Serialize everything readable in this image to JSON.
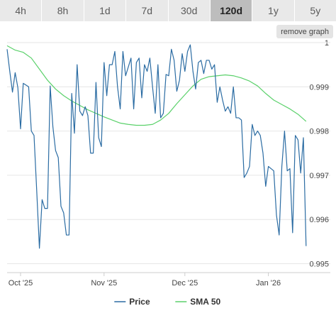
{
  "tabs": [
    {
      "label": "4h",
      "active": false
    },
    {
      "label": "8h",
      "active": false
    },
    {
      "label": "1d",
      "active": false
    },
    {
      "label": "7d",
      "active": false
    },
    {
      "label": "30d",
      "active": false
    },
    {
      "label": "120d",
      "active": true
    },
    {
      "label": "1y",
      "active": false
    },
    {
      "label": "5y",
      "active": false
    }
  ],
  "remove_graph_label": "remove graph",
  "colors": {
    "price": "#2b6ca3",
    "sma": "#5bd16b",
    "grid": "#e6e6e6",
    "active_tab": "#bdbdbd"
  },
  "chart_data": {
    "type": "line",
    "x_axis": {
      "type": "date",
      "range": [
        "2025-09-26",
        "2026-01-24"
      ],
      "ticks": [
        {
          "date": "2025-10-01",
          "label": "Oct '25"
        },
        {
          "date": "2025-11-01",
          "label": "Nov '25"
        },
        {
          "date": "2025-12-01",
          "label": "Dec '25"
        },
        {
          "date": "2026-01-01",
          "label": "Jan '26"
        }
      ]
    },
    "y_axis": {
      "range": [
        0.9948,
        1.0
      ],
      "ticks": [
        1,
        0.999,
        0.998,
        0.997,
        0.996,
        0.995
      ]
    },
    "grid": true,
    "legend_position": "bottom",
    "series": [
      {
        "name": "Price",
        "color": "#2b6ca3",
        "points": [
          [
            "2025-09-26",
            0.99985
          ],
          [
            "2025-09-27",
            0.99935
          ],
          [
            "2025-09-28",
            0.99888
          ],
          [
            "2025-09-29",
            0.99932
          ],
          [
            "2025-09-30",
            0.99898
          ],
          [
            "2025-10-01",
            0.99805
          ],
          [
            "2025-10-02",
            0.99908
          ],
          [
            "2025-10-04",
            0.999
          ],
          [
            "2025-10-05",
            0.998
          ],
          [
            "2025-10-06",
            0.9979
          ],
          [
            "2025-10-07",
            0.99665
          ],
          [
            "2025-10-08",
            0.99535
          ],
          [
            "2025-10-09",
            0.99645
          ],
          [
            "2025-10-10",
            0.99625
          ],
          [
            "2025-10-11",
            0.99625
          ],
          [
            "2025-10-12",
            0.99902
          ],
          [
            "2025-10-13",
            0.9981
          ],
          [
            "2025-10-14",
            0.99756
          ],
          [
            "2025-10-15",
            0.9974
          ],
          [
            "2025-10-16",
            0.9963
          ],
          [
            "2025-10-17",
            0.99615
          ],
          [
            "2025-10-18",
            0.99565
          ],
          [
            "2025-10-19",
            0.99565
          ],
          [
            "2025-10-20",
            0.99885
          ],
          [
            "2025-10-21",
            0.99795
          ],
          [
            "2025-10-22",
            0.9995
          ],
          [
            "2025-10-23",
            0.99845
          ],
          [
            "2025-10-24",
            0.99835
          ],
          [
            "2025-10-25",
            0.99855
          ],
          [
            "2025-10-26",
            0.99835
          ],
          [
            "2025-10-27",
            0.9975
          ],
          [
            "2025-10-28",
            0.9975
          ],
          [
            "2025-10-29",
            0.9991
          ],
          [
            "2025-10-30",
            0.99785
          ],
          [
            "2025-10-31",
            0.99765
          ],
          [
            "2025-11-01",
            0.99955
          ],
          [
            "2025-11-02",
            0.9988
          ],
          [
            "2025-11-03",
            0.9995
          ],
          [
            "2025-11-04",
            0.9995
          ],
          [
            "2025-11-05",
            0.9998
          ],
          [
            "2025-11-06",
            0.999
          ],
          [
            "2025-11-07",
            0.9985
          ],
          [
            "2025-11-08",
            0.9998
          ],
          [
            "2025-11-09",
            0.99925
          ],
          [
            "2025-11-10",
            0.99945
          ],
          [
            "2025-11-11",
            0.99965
          ],
          [
            "2025-11-12",
            0.9985
          ],
          [
            "2025-11-13",
            0.99955
          ],
          [
            "2025-11-14",
            0.99965
          ],
          [
            "2025-11-15",
            0.99875
          ],
          [
            "2025-11-16",
            0.9995
          ],
          [
            "2025-11-17",
            0.99935
          ],
          [
            "2025-11-18",
            0.99965
          ],
          [
            "2025-11-19",
            0.999
          ],
          [
            "2025-11-20",
            0.9984
          ],
          [
            "2025-11-21",
            0.9995
          ],
          [
            "2025-11-22",
            0.9983
          ],
          [
            "2025-11-23",
            0.9984
          ],
          [
            "2025-11-24",
            0.99928
          ],
          [
            "2025-11-25",
            0.99925
          ],
          [
            "2025-11-26",
            0.99985
          ],
          [
            "2025-11-27",
            0.9996
          ],
          [
            "2025-11-28",
            0.9989
          ],
          [
            "2025-11-29",
            0.99915
          ],
          [
            "2025-11-30",
            0.99975
          ],
          [
            "2025-12-01",
            0.99935
          ],
          [
            "2025-12-02",
            0.9998
          ],
          [
            "2025-12-03",
            0.99995
          ],
          [
            "2025-12-04",
            0.99935
          ],
          [
            "2025-12-05",
            0.99895
          ],
          [
            "2025-12-06",
            0.99955
          ],
          [
            "2025-12-07",
            0.9996
          ],
          [
            "2025-12-08",
            0.9993
          ],
          [
            "2025-12-09",
            0.9996
          ],
          [
            "2025-12-10",
            0.9996
          ],
          [
            "2025-12-11",
            0.9994
          ],
          [
            "2025-12-12",
            0.9995
          ],
          [
            "2025-12-13",
            0.99865
          ],
          [
            "2025-12-14",
            0.999
          ],
          [
            "2025-12-15",
            0.9987
          ],
          [
            "2025-12-16",
            0.99845
          ],
          [
            "2025-12-17",
            0.99855
          ],
          [
            "2025-12-18",
            0.9984
          ],
          [
            "2025-12-19",
            0.999
          ],
          [
            "2025-12-20",
            0.9983
          ],
          [
            "2025-12-21",
            0.9983
          ],
          [
            "2025-12-22",
            0.99825
          ],
          [
            "2025-12-23",
            0.99695
          ],
          [
            "2025-12-24",
            0.99705
          ],
          [
            "2025-12-25",
            0.9972
          ],
          [
            "2025-12-26",
            0.99815
          ],
          [
            "2025-12-27",
            0.9979
          ],
          [
            "2025-12-28",
            0.998
          ],
          [
            "2025-12-29",
            0.9979
          ],
          [
            "2025-12-30",
            0.9975
          ],
          [
            "2025-12-31",
            0.99675
          ],
          [
            "2026-01-01",
            0.9972
          ],
          [
            "2026-01-02",
            0.99715
          ],
          [
            "2026-01-03",
            0.9971
          ],
          [
            "2026-01-04",
            0.9961
          ],
          [
            "2026-01-05",
            0.99565
          ],
          [
            "2026-01-06",
            0.9972
          ],
          [
            "2026-01-07",
            0.998
          ],
          [
            "2026-01-08",
            0.9971
          ],
          [
            "2026-01-09",
            0.99715
          ],
          [
            "2026-01-10",
            0.9957
          ],
          [
            "2026-01-11",
            0.9979
          ],
          [
            "2026-01-12",
            0.9978
          ],
          [
            "2026-01-13",
            0.99705
          ],
          [
            "2026-01-14",
            0.99785
          ],
          [
            "2026-01-15",
            0.9954
          ]
        ]
      },
      {
        "name": "SMA 50",
        "color": "#5bd16b",
        "points": [
          [
            "2025-09-26",
            0.99993
          ],
          [
            "2025-09-29",
            0.99983
          ],
          [
            "2025-10-02",
            0.99978
          ],
          [
            "2025-10-05",
            0.99965
          ],
          [
            "2025-10-08",
            0.9994
          ],
          [
            "2025-10-11",
            0.99915
          ],
          [
            "2025-10-14",
            0.99895
          ],
          [
            "2025-10-17",
            0.9988
          ],
          [
            "2025-10-20",
            0.99868
          ],
          [
            "2025-10-23",
            0.99858
          ],
          [
            "2025-10-26",
            0.99848
          ],
          [
            "2025-10-29",
            0.9984
          ],
          [
            "2025-11-01",
            0.99832
          ],
          [
            "2025-11-04",
            0.99825
          ],
          [
            "2025-11-07",
            0.99818
          ],
          [
            "2025-11-10",
            0.99815
          ],
          [
            "2025-11-13",
            0.99813
          ],
          [
            "2025-11-16",
            0.99813
          ],
          [
            "2025-11-19",
            0.99815
          ],
          [
            "2025-11-22",
            0.99825
          ],
          [
            "2025-11-25",
            0.9984
          ],
          [
            "2025-11-28",
            0.99862
          ],
          [
            "2025-12-01",
            0.99882
          ],
          [
            "2025-12-04",
            0.99902
          ],
          [
            "2025-12-07",
            0.99917
          ],
          [
            "2025-12-10",
            0.99923
          ],
          [
            "2025-12-13",
            0.99925
          ],
          [
            "2025-12-16",
            0.99927
          ],
          [
            "2025-12-19",
            0.99925
          ],
          [
            "2025-12-22",
            0.9992
          ],
          [
            "2025-12-25",
            0.99913
          ],
          [
            "2025-12-28",
            0.99902
          ],
          [
            "2025-12-31",
            0.99885
          ],
          [
            "2026-01-03",
            0.9987
          ],
          [
            "2026-01-06",
            0.9986
          ],
          [
            "2026-01-09",
            0.9985
          ],
          [
            "2026-01-12",
            0.99838
          ],
          [
            "2026-01-15",
            0.99822
          ]
        ]
      }
    ]
  }
}
